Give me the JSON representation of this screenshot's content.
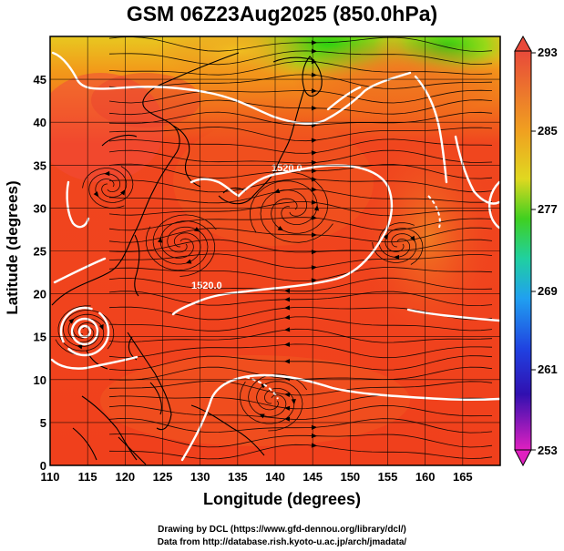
{
  "title": "GSM 06Z23Aug2025 (850.0hPa)",
  "x_axis": {
    "label": "Longitude (degrees)",
    "ticks": [
      "110",
      "115",
      "120",
      "125",
      "130",
      "135",
      "140",
      "145",
      "150",
      "155",
      "160",
      "165"
    ]
  },
  "y_axis": {
    "label": "Latitude  (degrees)",
    "ticks": [
      "0",
      "5",
      "10",
      "15",
      "20",
      "25",
      "30",
      "35",
      "40",
      "45"
    ]
  },
  "colorbar": {
    "ticks": [
      "293",
      "285",
      "277",
      "269",
      "261",
      "253"
    ]
  },
  "contour_labels": [
    "1520.0",
    "1520.0"
  ],
  "credits": {
    "line1": "Drawing by DCL (https://www.gfd-dennou.org/library/dcl/)",
    "line2": "Data from http://database.rish.kyoto-u.ac.jp/arch/jmadata/"
  },
  "colors": {
    "warm": "#f0461e",
    "cool": "#30d010",
    "colorbar_top": "#e84a3a",
    "colorbar_bottom": "#e020c0"
  }
}
